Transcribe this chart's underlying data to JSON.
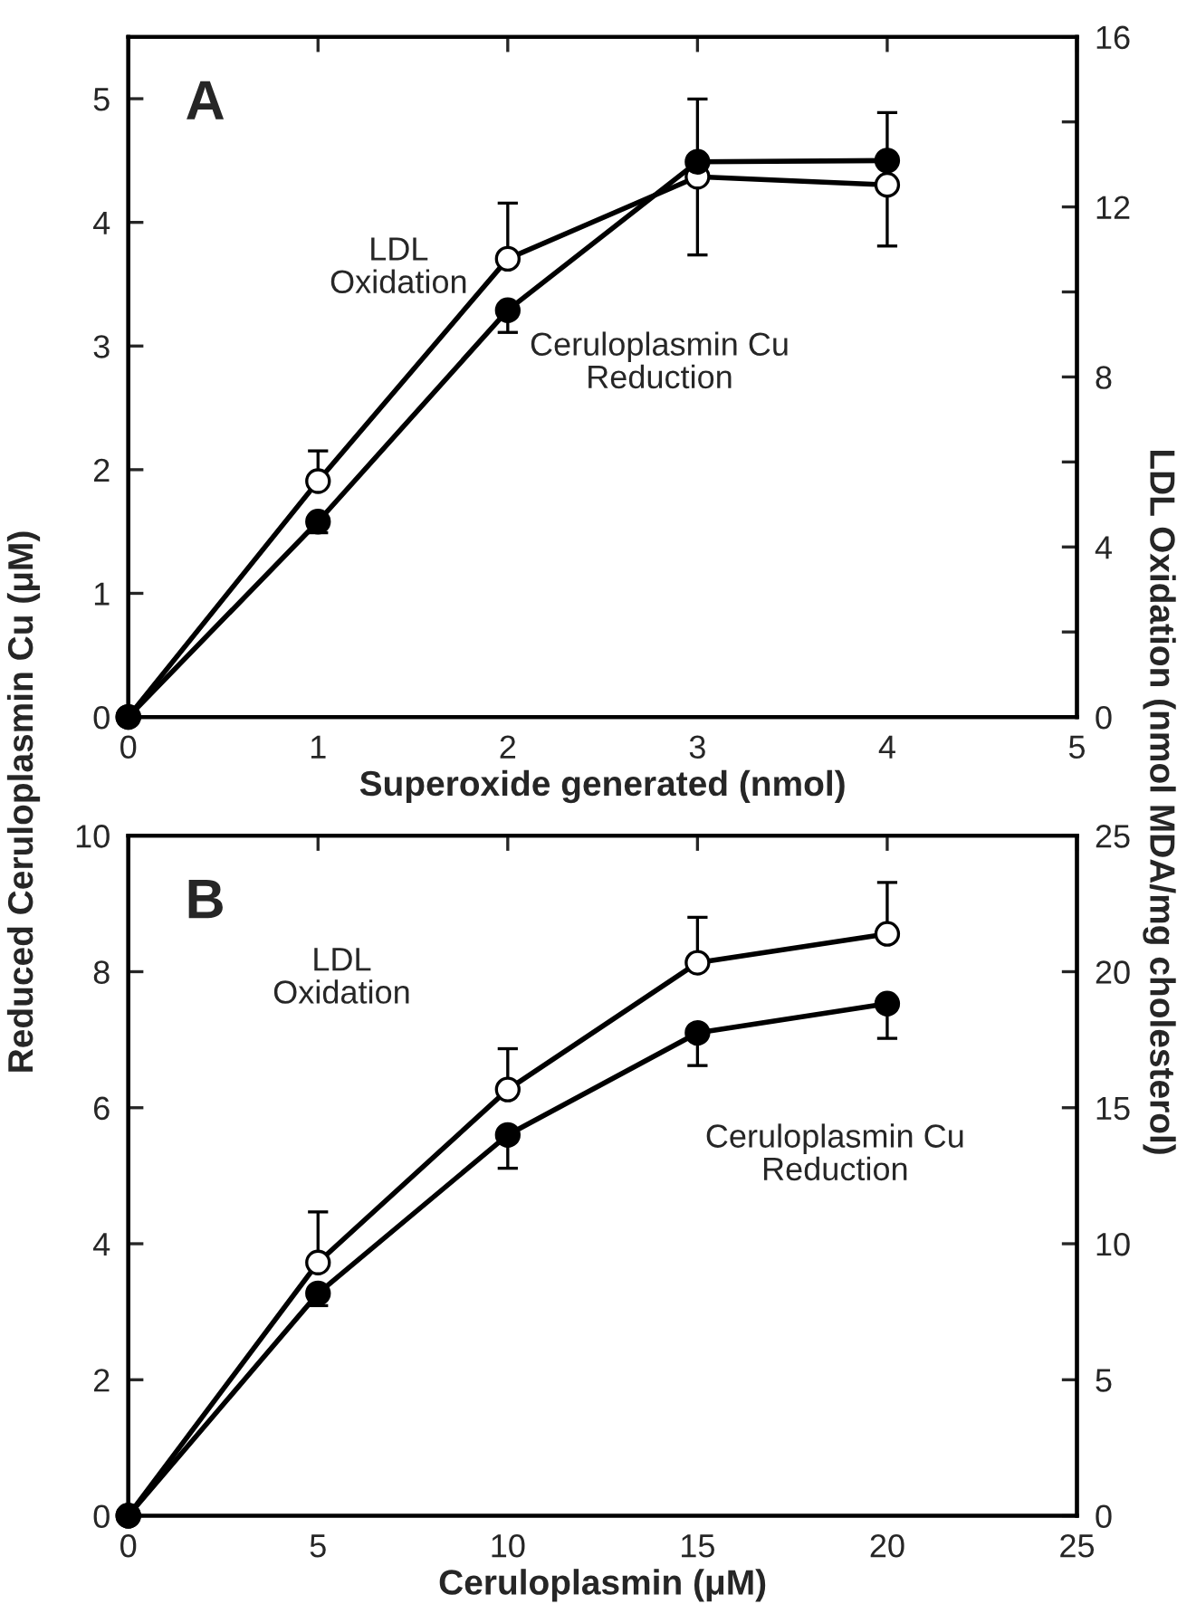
{
  "chart_data": [
    {
      "type": "line",
      "ylabel": "Reduced Ceruloplasmin Cu (μM)",
      "y2label": "LDL Oxidation (nmol MDA/mg cholesterol)",
      "xlabel": "Superoxide generated (nmol)",
      "x": [
        0,
        1,
        2,
        3,
        4
      ],
      "xlim": [
        0,
        5
      ],
      "xticks": [
        0,
        1,
        2,
        3,
        4,
        5
      ],
      "ylim": [
        0,
        5.5
      ],
      "yticks": [
        0,
        1,
        2,
        3,
        4,
        5
      ],
      "y2lim": [
        0,
        16
      ],
      "y2ticks": [
        0,
        {
          "value": 2,
          "label": null
        },
        4,
        {
          "value": 6,
          "label": null
        },
        8,
        {
          "value": 10,
          "label": null
        },
        12,
        {
          "value": 14,
          "label": null
        },
        16
      ],
      "marker": "circle",
      "line_style": "solid",
      "grid": false,
      "legend": false,
      "series": [
        {
          "color": "#000000",
          "values": [
            0,
            1.58,
            3.29,
            4.49,
            4.5
          ],
          "errors": [
            null,
            [
              1.49,
              1.58
            ],
            [
              3.11,
              3.29
            ],
            null,
            null
          ]
        },
        {
          "color": "#ffffff",
          "axis": "y2",
          "values": [
            0,
            5.55,
            10.78,
            12.71,
            12.52
          ],
          "errors": [
            null,
            [
              5.55,
              6.26
            ],
            [
              10.78,
              12.09
            ],
            [
              10.87,
              14.54
            ],
            [
              11.08,
              14.22
            ]
          ]
        }
      ],
      "annotations": [
        "A",
        "LDL\nOxidation",
        "Ceruloplasmin Cu\nReduction"
      ]
    },
    {
      "type": "line",
      "xlabel": "Ceruloplasmin (μM)",
      "x": [
        0,
        5,
        10,
        15,
        20
      ],
      "xlim": [
        0,
        25
      ],
      "xticks": [
        0,
        5,
        10,
        15,
        20,
        25
      ],
      "ylim": [
        0,
        10
      ],
      "yticks": [
        0,
        2,
        4,
        6,
        8,
        10
      ],
      "y2lim": [
        0,
        25
      ],
      "y2ticks": [
        0,
        5,
        10,
        15,
        20,
        25
      ],
      "marker": "circle",
      "line_style": "solid",
      "grid": false,
      "legend": false,
      "series": [
        {
          "color": "#000000",
          "values": [
            0,
            3.27,
            5.6,
            7.1,
            7.53
          ],
          "errors": [
            null,
            [
              3.09,
              3.27
            ],
            [
              5.11,
              5.6
            ],
            [
              6.62,
              7.1
            ],
            [
              7.02,
              7.53
            ]
          ]
        },
        {
          "color": "#ffffff",
          "axis": "y2",
          "values": [
            0,
            9.31,
            15.67,
            20.33,
            21.39
          ],
          "errors": [
            null,
            [
              9.31,
              11.17
            ],
            [
              15.67,
              17.17
            ],
            [
              20.33,
              22.0
            ],
            [
              21.39,
              23.28
            ]
          ]
        }
      ],
      "annotations": [
        "B",
        "LDL\nOxidation",
        "Ceruloplasmin Cu\nReduction"
      ]
    }
  ]
}
